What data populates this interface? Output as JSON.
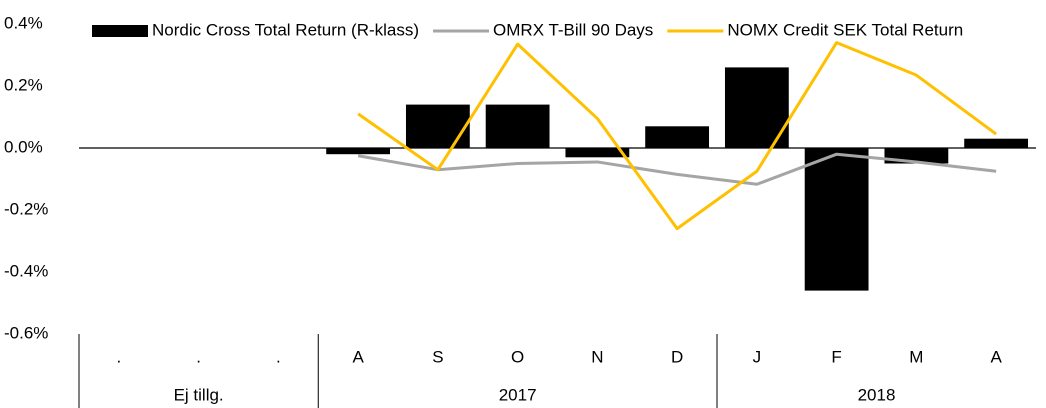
{
  "chart_data": {
    "type": "bar_line",
    "categories": [
      ".",
      ".",
      ".",
      "A",
      "S",
      "O",
      "N",
      "D",
      "J",
      "F",
      "M",
      "A"
    ],
    "category_groups": [
      "Ej tillg.",
      "Ej tillg.",
      "Ej tillg.",
      "2017",
      "2017",
      "2017",
      "2017",
      "2017",
      "2018",
      "2018",
      "2018",
      "2018"
    ],
    "series": [
      {
        "name": "Nordic Cross Total Return (R-klass)",
        "type": "bar",
        "color": "#000000",
        "values": [
          null,
          null,
          null,
          -0.02,
          0.14,
          0.14,
          -0.03,
          0.07,
          0.26,
          -0.46,
          -0.05,
          0.03
        ]
      },
      {
        "name": "OMRX T-Bill 90 Days",
        "type": "line",
        "color": "#a5a5a5",
        "values": [
          null,
          null,
          null,
          -0.025,
          -0.07,
          -0.05,
          -0.045,
          -0.085,
          -0.117,
          -0.02,
          -0.045,
          -0.075
        ]
      },
      {
        "name": "NOMX Credit SEK Total Return",
        "type": "line",
        "color": "#ffc000",
        "values": [
          null,
          null,
          null,
          0.11,
          -0.07,
          0.335,
          0.095,
          -0.26,
          -0.075,
          0.34,
          0.235,
          0.045
        ]
      }
    ],
    "ylim": [
      -0.6,
      0.4
    ],
    "yticks": [
      {
        "value": -0.6,
        "label": "-0.6%"
      },
      {
        "value": -0.4,
        "label": "-0.4%"
      },
      {
        "value": -0.2,
        "label": "-0.2%"
      },
      {
        "value": 0,
        "label": "0.0%"
      },
      {
        "value": 0.2,
        "label": "0.2%"
      },
      {
        "value": 0.4,
        "label": "0.4%"
      }
    ],
    "legend": "top"
  }
}
